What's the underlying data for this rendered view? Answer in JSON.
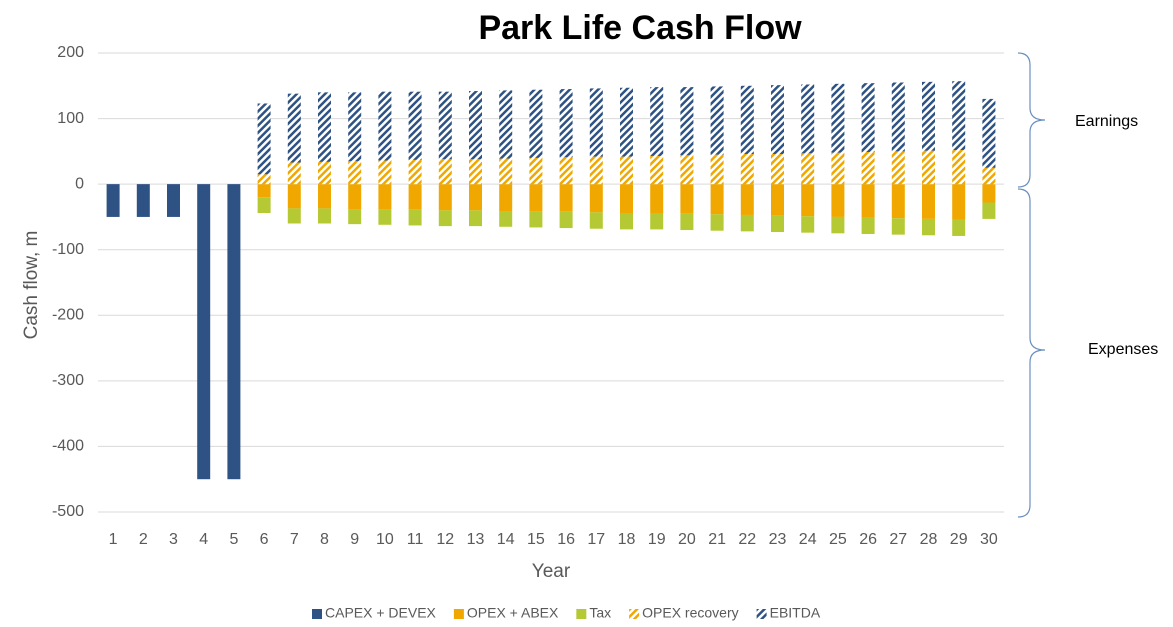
{
  "chart_data": {
    "type": "bar",
    "stacked": true,
    "title": "Park Life Cash Flow",
    "x_label": "Year",
    "y_label": "Cash flow, m",
    "categories": [
      "1",
      "2",
      "3",
      "4",
      "5",
      "6",
      "7",
      "8",
      "9",
      "10",
      "11",
      "12",
      "13",
      "14",
      "15",
      "16",
      "17",
      "18",
      "19",
      "20",
      "21",
      "22",
      "23",
      "24",
      "25",
      "26",
      "27",
      "28",
      "29",
      "30"
    ],
    "series": [
      {
        "name": "CAPEX + DEVEX",
        "color": "#2e5283",
        "hatched": false,
        "values": [
          -50,
          -50,
          -50,
          -450,
          -450,
          null,
          null,
          null,
          null,
          null,
          null,
          null,
          null,
          null,
          null,
          null,
          null,
          null,
          null,
          null,
          null,
          null,
          null,
          null,
          null,
          null,
          null,
          null,
          null,
          null
        ]
      },
      {
        "name": "OPEX + ABEX",
        "color": "#f0a800",
        "hatched": false,
        "values": [
          null,
          null,
          null,
          null,
          null,
          -20,
          -37,
          -37,
          -38,
          -38,
          -39,
          -40,
          -40,
          -41,
          -42,
          -42,
          -43,
          -44,
          -44,
          -45,
          -46,
          -47,
          -48,
          -49,
          -50,
          -51,
          -52,
          -53,
          -54,
          -28
        ]
      },
      {
        "name": "Tax",
        "color": "#b5c934",
        "hatched": false,
        "values": [
          null,
          null,
          null,
          null,
          null,
          -24,
          -23,
          -23,
          -23,
          -24,
          -24,
          -24,
          -24,
          -24,
          -24,
          -25,
          -25,
          -25,
          -25,
          -25,
          -25,
          -25,
          -25,
          -25,
          -25,
          -25,
          -25,
          -25,
          -25,
          -25
        ]
      },
      {
        "name": "OPEX recovery",
        "color": "#f0a800",
        "hatched": true,
        "values": [
          null,
          null,
          null,
          null,
          null,
          15,
          33,
          34,
          35,
          36,
          37,
          38,
          38,
          39,
          40,
          41,
          42,
          42,
          43,
          44,
          45,
          46,
          46,
          47,
          48,
          49,
          50,
          51,
          52,
          25
        ]
      },
      {
        "name": "EBITDA",
        "color": "#2e5283",
        "hatched": true,
        "values": [
          null,
          null,
          null,
          null,
          null,
          108,
          105,
          106,
          105,
          105,
          104,
          103,
          104,
          104,
          104,
          104,
          104,
          105,
          105,
          104,
          104,
          104,
          105,
          105,
          105,
          105,
          105,
          105,
          105,
          105
        ]
      }
    ],
    "ylim": [
      -500,
      200
    ],
    "yticks": [
      -500,
      -400,
      -300,
      -200,
      -100,
      0,
      100,
      200
    ],
    "grid": true,
    "legend": "bottom",
    "annotations": [
      "Earnings",
      "Expenses"
    ]
  }
}
